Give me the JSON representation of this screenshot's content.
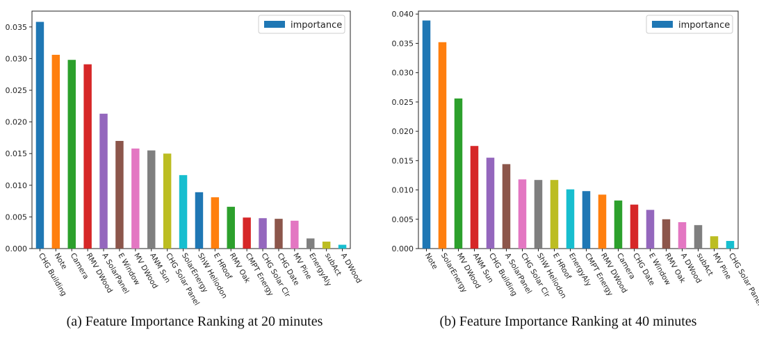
{
  "captions": {
    "a": "(a) Feature Importance Ranking at 20 minutes",
    "b": "(b) Feature Importance Ranking at 40 minutes"
  },
  "palette": [
    "#1f77b4",
    "#ff7f0e",
    "#2ca02c",
    "#d62728",
    "#9467bd",
    "#8c564b",
    "#e377c2",
    "#7f7f7f",
    "#bcbd22",
    "#17becf"
  ],
  "chart_data": [
    {
      "type": "bar",
      "legend": "importance",
      "legend_position": "top-right",
      "grid": false,
      "ylim": [
        0,
        0.0375
      ],
      "yticks": [
        "0.000",
        "0.005",
        "0.010",
        "0.015",
        "0.020",
        "0.025",
        "0.030",
        "0.035"
      ],
      "categories": [
        "CHG Building",
        "Note",
        "Camera",
        "RMV DWood",
        "A SolarPanel",
        "E Window",
        "MV DWood",
        "ANM Sun",
        "CHG Solar Panel",
        "SolarEnergy",
        "ShW Heliodon",
        "E HRoof",
        "RMV Oak",
        "CMPT Energy",
        "CHG Solar Clr",
        "CHG Date",
        "MV Pine",
        "EnergyAly",
        "subAct",
        "A DWood"
      ],
      "values": [
        0.0358,
        0.0306,
        0.0298,
        0.0291,
        0.0213,
        0.017,
        0.0158,
        0.0155,
        0.015,
        0.0116,
        0.0089,
        0.0081,
        0.0066,
        0.0049,
        0.0048,
        0.0047,
        0.0044,
        0.0016,
        0.0011,
        0.0006
      ]
    },
    {
      "type": "bar",
      "legend": "importance",
      "legend_position": "top-right",
      "grid": false,
      "ylim": [
        0,
        0.0405
      ],
      "yticks": [
        "0.000",
        "0.005",
        "0.010",
        "0.015",
        "0.020",
        "0.025",
        "0.030",
        "0.035",
        "0.040"
      ],
      "categories": [
        "Note",
        "SolarEnergy",
        "MV DWood",
        "ANM Sun",
        "CHG Building",
        "A SolarPanel",
        "CHG Solar Clr",
        "ShW Heliodon",
        "E HRoof",
        "EnergyAly",
        "CMPT Energy",
        "RMV DWood",
        "Camera",
        "CHG Date",
        "E Window",
        "RMV Oak",
        "A DWood",
        "subAct",
        "MV Pine",
        "CHG Solar Panel"
      ],
      "values": [
        0.0389,
        0.0352,
        0.0256,
        0.0175,
        0.0155,
        0.0144,
        0.0118,
        0.0117,
        0.0117,
        0.0101,
        0.0098,
        0.0092,
        0.0082,
        0.0075,
        0.0066,
        0.005,
        0.0045,
        0.004,
        0.0021,
        0.0013
      ]
    }
  ]
}
